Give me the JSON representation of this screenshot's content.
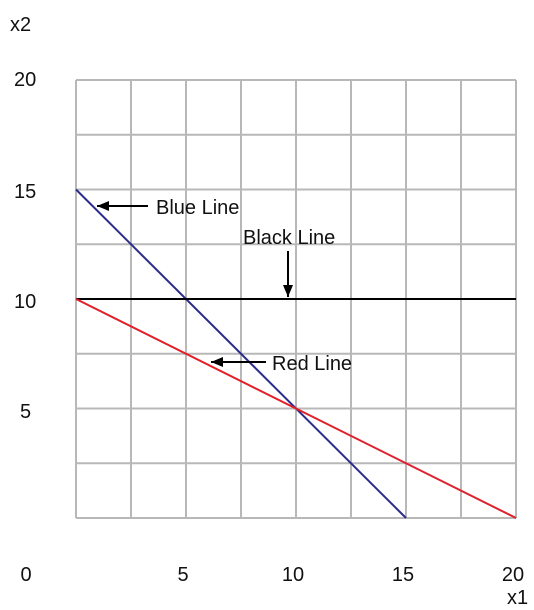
{
  "chart_data": {
    "type": "line",
    "xlabel": "x1",
    "ylabel": "x2",
    "xlim": [
      0,
      20
    ],
    "ylim": [
      0,
      20
    ],
    "grid": true,
    "x_ticks": [
      "0",
      "5",
      "10",
      "15",
      "20"
    ],
    "y_ticks": [
      "5",
      "10",
      "15",
      "20"
    ],
    "series": [
      {
        "name": "Blue Line",
        "color": "#2b2b8c",
        "x": [
          0,
          15
        ],
        "y": [
          15,
          0
        ]
      },
      {
        "name": "Black Line",
        "color": "#000000",
        "x": [
          0,
          20
        ],
        "y": [
          10,
          10
        ]
      },
      {
        "name": "Red Line",
        "color": "#e0202a",
        "x": [
          0,
          20
        ],
        "y": [
          10,
          0
        ]
      }
    ],
    "annotations": [
      {
        "text": "Blue Line",
        "points_to": [
          0.7,
          14.3
        ]
      },
      {
        "text": "Black Line",
        "points_to": [
          10,
          10
        ]
      },
      {
        "text": "Red Line",
        "points_to": [
          6,
          7
        ]
      }
    ]
  }
}
